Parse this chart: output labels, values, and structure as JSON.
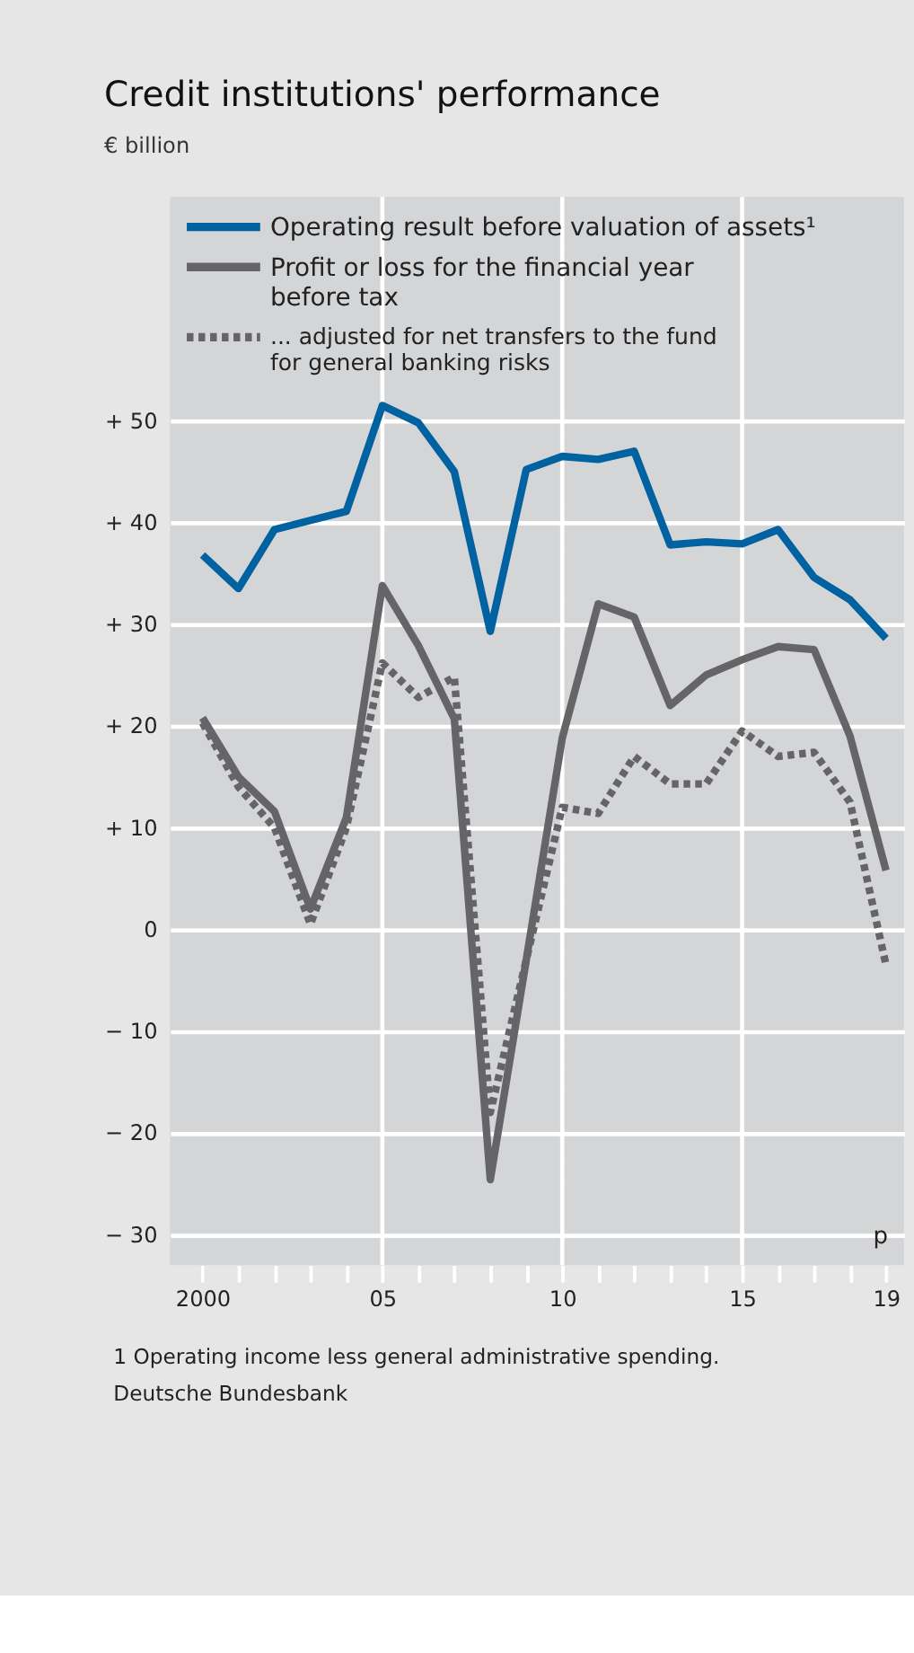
{
  "chart_data": {
    "type": "line",
    "title": "Credit institutions' performance",
    "subtitle": "€ billion",
    "x": [
      2000,
      2001,
      2002,
      2003,
      2004,
      2005,
      2006,
      2007,
      2008,
      2009,
      2010,
      2011,
      2012,
      2013,
      2014,
      2015,
      2016,
      2017,
      2018,
      2019
    ],
    "series": [
      {
        "name": "Operating result before valuation of assets¹",
        "color": "#0062a1",
        "line_style": "solid",
        "values": [
          36.8,
          33.5,
          39.3,
          40.2,
          41.1,
          51.5,
          49.8,
          45,
          29.3,
          45.2,
          46.5,
          46.2,
          47,
          37.8,
          38.1,
          37.9,
          39.3,
          34.6,
          32.4,
          28.6
        ]
      },
      {
        "name": "Profit or loss for the financial year\nbefore tax",
        "color": "#656567",
        "line_style": "solid",
        "values": [
          20.8,
          15,
          11.6,
          2,
          11,
          33.8,
          27.9,
          20.7,
          -24.6,
          -3,
          18.8,
          32,
          30.7,
          22,
          25,
          26.5,
          27.8,
          27.5,
          19,
          5.8
        ]
      },
      {
        "name": "... adjusted for net transfers to the fund\n     for general banking risks",
        "color": "#656567",
        "line_style": "dotted",
        "values": [
          20.3,
          14,
          10,
          0.5,
          10,
          26.2,
          22.8,
          24.8,
          -18,
          -3,
          12,
          11.4,
          17,
          14.3,
          14.3,
          19.5,
          17,
          17.4,
          12.5,
          -3.5
        ]
      }
    ],
    "xlim": [
      1999.1,
      2019.5
    ],
    "xticks": [
      {
        "value": 2000,
        "label": "2000"
      },
      {
        "value": 2001,
        "label": null
      },
      {
        "value": 2002,
        "label": null
      },
      {
        "value": 2003,
        "label": null
      },
      {
        "value": 2004,
        "label": null
      },
      {
        "value": 2005,
        "label": "05"
      },
      {
        "value": 2006,
        "label": null
      },
      {
        "value": 2007,
        "label": null
      },
      {
        "value": 2008,
        "label": null
      },
      {
        "value": 2009,
        "label": null
      },
      {
        "value": 2010,
        "label": "10"
      },
      {
        "value": 2011,
        "label": null
      },
      {
        "value": 2012,
        "label": null
      },
      {
        "value": 2013,
        "label": null
      },
      {
        "value": 2014,
        "label": null
      },
      {
        "value": 2015,
        "label": "15"
      },
      {
        "value": 2016,
        "label": null
      },
      {
        "value": 2017,
        "label": null
      },
      {
        "value": 2018,
        "label": null
      },
      {
        "value": 2019,
        "label": "19"
      }
    ],
    "ylim": [
      -33,
      72
    ],
    "yticks": [
      {
        "value": -30,
        "label": "− 30"
      },
      {
        "value": -20,
        "label": "− 20"
      },
      {
        "value": -10,
        "label": "− 10"
      },
      {
        "value": 0,
        "label": "0"
      },
      {
        "value": 10,
        "label": "+ 10"
      },
      {
        "value": 20,
        "label": "+ 20"
      },
      {
        "value": 30,
        "label": "+ 30"
      },
      {
        "value": 40,
        "label": "+ 40"
      },
      {
        "value": 50,
        "label": "+ 50"
      }
    ],
    "grid": "y",
    "legend": "top left",
    "ref_lines": [
      {
        "axis": "x",
        "value": 2005,
        "color": "#ffffff"
      },
      {
        "axis": "x",
        "value": 2010,
        "color": "#ffffff"
      },
      {
        "axis": "x",
        "value": 2015,
        "color": "#ffffff"
      }
    ],
    "annotations": [
      "p",
      "1 Operating income less general administrative spending.",
      "Deutsche Bundesbank"
    ]
  }
}
